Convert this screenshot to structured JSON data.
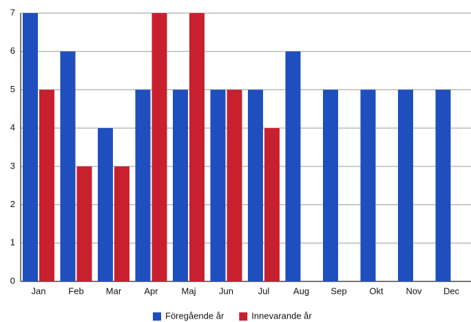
{
  "chart_data": {
    "type": "bar",
    "categories": [
      "Jan",
      "Feb",
      "Mar",
      "Apr",
      "Maj",
      "Jun",
      "Jul",
      "Aug",
      "Sep",
      "Okt",
      "Nov",
      "Dec"
    ],
    "series": [
      {
        "name": "Föregående år",
        "color": "#1f4fbf",
        "values": [
          7,
          6,
          4,
          5,
          5,
          5,
          5,
          6,
          5,
          5,
          5,
          5
        ]
      },
      {
        "name": "Innevarande år",
        "color": "#c8202f",
        "values": [
          5,
          3,
          3,
          7,
          7,
          5,
          4,
          null,
          null,
          null,
          null,
          null
        ]
      }
    ],
    "ylim": [
      0,
      7
    ],
    "yticks": [
      0,
      1,
      2,
      3,
      4,
      5,
      6,
      7
    ],
    "grid": true,
    "legend": "bottom"
  }
}
